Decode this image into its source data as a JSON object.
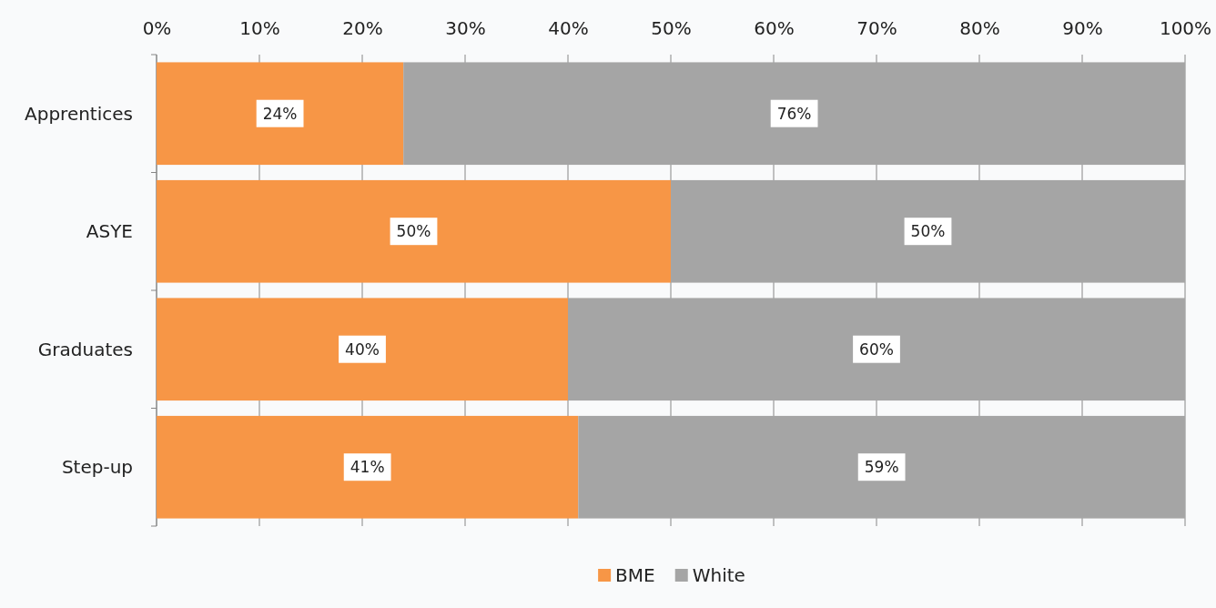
{
  "chart_data": {
    "type": "bar",
    "orientation": "horizontal",
    "stacked": true,
    "categories": [
      "Apprentices",
      "ASYE",
      "Graduates",
      "Step-up"
    ],
    "series": [
      {
        "name": "BME",
        "color": "#f79646",
        "values": [
          24,
          50,
          40,
          41
        ],
        "value_labels": [
          "24%",
          "50%",
          "40%",
          "41%"
        ]
      },
      {
        "name": "White",
        "color": "#a5a5a5",
        "values": [
          76,
          50,
          60,
          59
        ],
        "value_labels": [
          "76%",
          "50%",
          "60%",
          "59%"
        ]
      }
    ],
    "xlim": [
      0,
      100
    ],
    "xticks": [
      {
        "value": 0,
        "label": "0%"
      },
      {
        "value": 10,
        "label": "10%"
      },
      {
        "value": 20,
        "label": "20%"
      },
      {
        "value": 30,
        "label": "30%"
      },
      {
        "value": 40,
        "label": "40%"
      },
      {
        "value": 50,
        "label": "50%"
      },
      {
        "value": 60,
        "label": "60%"
      },
      {
        "value": 70,
        "label": "70%"
      },
      {
        "value": 80,
        "label": "80%"
      },
      {
        "value": 90,
        "label": "90%"
      },
      {
        "value": 100,
        "label": "100%"
      }
    ],
    "grid": "x",
    "legend": "bottom"
  }
}
